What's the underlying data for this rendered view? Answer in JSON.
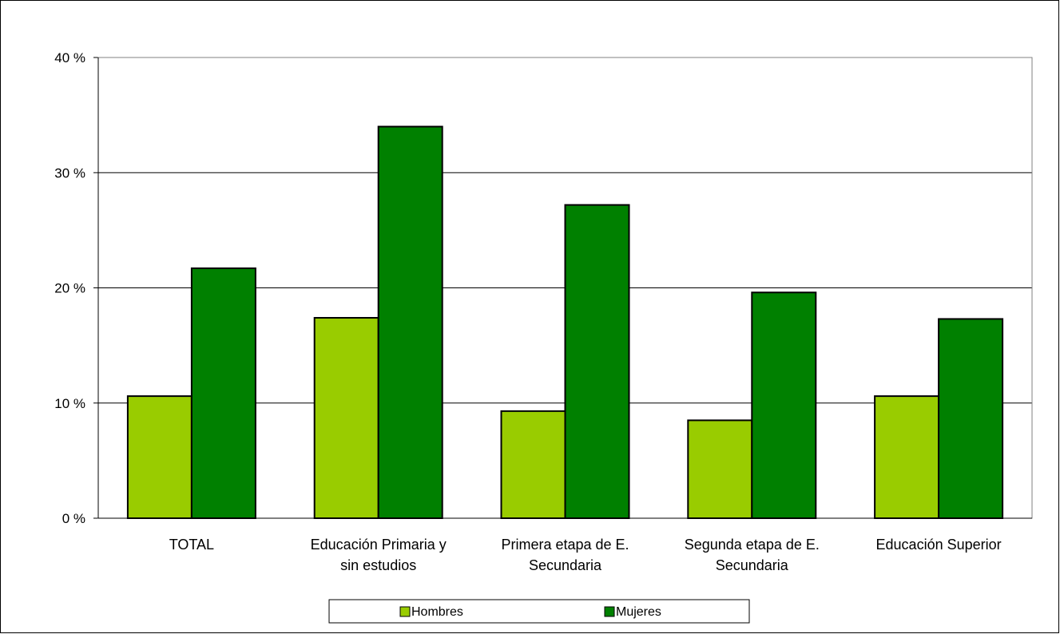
{
  "chart_data": {
    "type": "bar",
    "categories": [
      [
        "TOTAL"
      ],
      [
        "Educación Primaria y",
        "sin estudios"
      ],
      [
        "Primera etapa de E.",
        "Secundaria"
      ],
      [
        "Segunda etapa de E.",
        "Secundaria"
      ],
      [
        "Educación Superior"
      ]
    ],
    "series": [
      {
        "name": "Hombres",
        "color": "#99cc00",
        "values": [
          10.6,
          17.4,
          9.3,
          8.5,
          10.6
        ]
      },
      {
        "name": "Mujeres",
        "color": "#008000",
        "values": [
          21.7,
          34.0,
          27.2,
          19.6,
          17.3
        ]
      }
    ],
    "ylim": [
      0,
      40
    ],
    "yticks": [
      0,
      10,
      20,
      30,
      40
    ],
    "ytick_suffix": " %",
    "grid": true,
    "legend": "bottom",
    "xlabel": "",
    "ylabel": "",
    "title": ""
  }
}
